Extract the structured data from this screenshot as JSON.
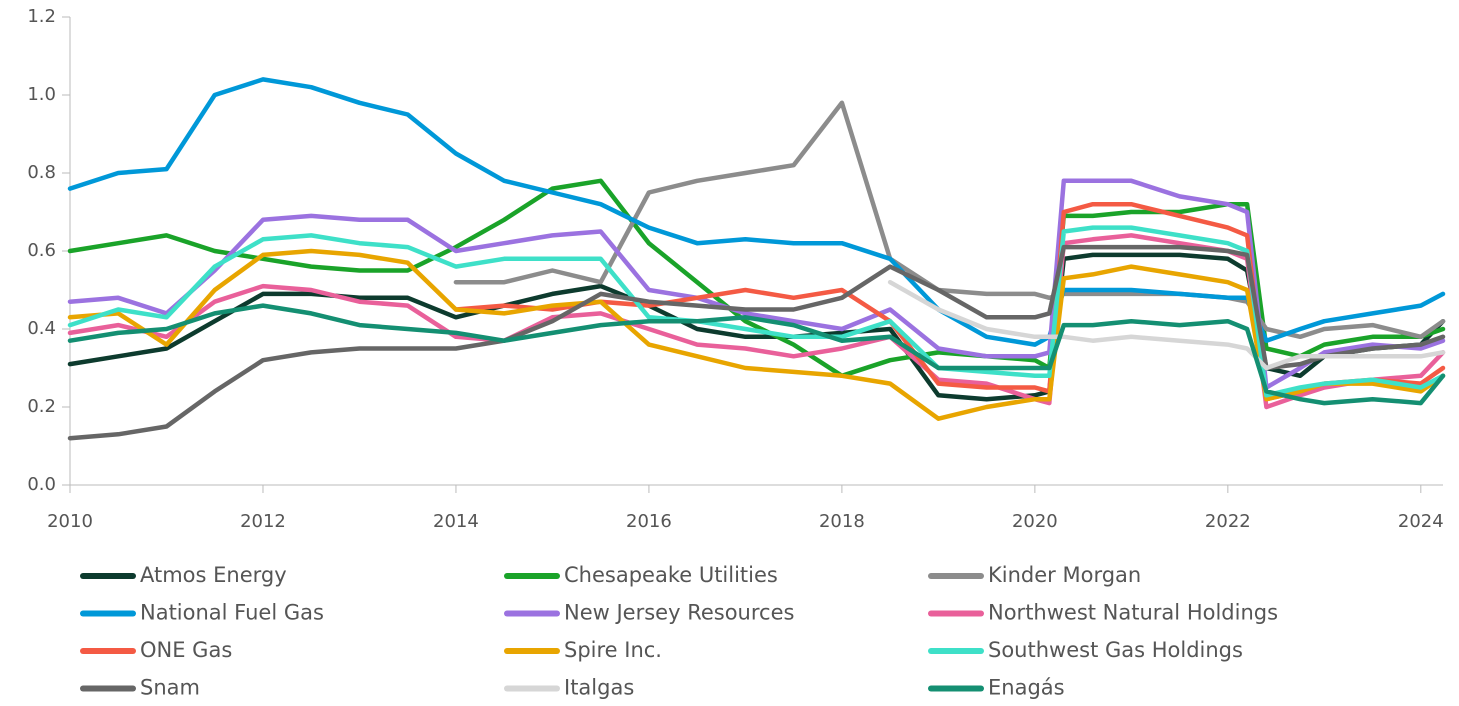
{
  "chart_data": {
    "type": "line",
    "x": [
      2010,
      2010.5,
      2011,
      2011.5,
      2012,
      2012.5,
      2013,
      2013.5,
      2014,
      2014.5,
      2015,
      2015.5,
      2016,
      2016.5,
      2017,
      2017.5,
      2018,
      2018.5,
      2019,
      2019.5,
      2020,
      2020.15,
      2020.3,
      2020.6,
      2021,
      2021.5,
      2022,
      2022.2,
      2022.4,
      2022.75,
      2023,
      2023.5,
      2024,
      2024.23
    ],
    "xlim": [
      2010,
      2024.23
    ],
    "xticks": [
      2010,
      2012,
      2014,
      2016,
      2018,
      2020,
      2022,
      2024
    ],
    "ylim": [
      0,
      1.2
    ],
    "yticks": [
      {
        "value": 0,
        "label": "0.0"
      },
      0.2,
      0.4,
      0.6,
      0.8,
      {
        "value": 1,
        "label": "1.0"
      },
      1.2
    ],
    "series": [
      {
        "name": "Atmos Energy",
        "color": "#0d3b2e",
        "values": [
          0.31,
          0.33,
          0.35,
          0.42,
          0.49,
          0.49,
          0.48,
          0.48,
          0.43,
          0.46,
          0.49,
          0.51,
          0.46,
          0.4,
          0.38,
          0.38,
          0.39,
          0.4,
          0.23,
          0.22,
          0.23,
          0.24,
          0.58,
          0.59,
          0.59,
          0.59,
          0.58,
          0.55,
          0.3,
          0.28,
          0.33,
          0.35,
          0.36,
          0.42
        ]
      },
      {
        "name": "Chesapeake Utilities",
        "color": "#1aa329",
        "values": [
          0.6,
          0.62,
          0.64,
          0.6,
          0.58,
          0.56,
          0.55,
          0.55,
          0.61,
          0.68,
          0.76,
          0.78,
          0.62,
          0.52,
          0.42,
          0.36,
          0.28,
          0.32,
          0.34,
          0.33,
          0.32,
          0.3,
          0.69,
          0.69,
          0.7,
          0.7,
          0.72,
          0.72,
          0.35,
          0.33,
          0.36,
          0.38,
          0.38,
          0.4
        ]
      },
      {
        "name": "Kinder Morgan",
        "color": "#8c8c8c",
        "values": [
          null,
          null,
          null,
          null,
          null,
          null,
          null,
          null,
          0.52,
          0.52,
          0.55,
          0.52,
          0.75,
          0.78,
          0.8,
          0.82,
          0.98,
          0.58,
          0.5,
          0.49,
          0.49,
          0.48,
          0.49,
          0.49,
          0.49,
          0.49,
          0.48,
          0.47,
          0.4,
          0.38,
          0.4,
          0.41,
          0.38,
          0.42
        ]
      },
      {
        "name": "National Fuel Gas",
        "color": "#0098d8",
        "values": [
          0.76,
          0.8,
          0.81,
          1.0,
          1.04,
          1.02,
          0.98,
          0.95,
          0.85,
          0.78,
          0.75,
          0.72,
          0.66,
          0.62,
          0.63,
          0.62,
          0.62,
          0.58,
          0.45,
          0.38,
          0.36,
          0.38,
          0.5,
          0.5,
          0.5,
          0.49,
          0.48,
          0.48,
          0.37,
          0.4,
          0.42,
          0.44,
          0.46,
          0.49
        ]
      },
      {
        "name": "New Jersey Resources",
        "color": "#9b72e0",
        "values": [
          0.47,
          0.48,
          0.44,
          0.55,
          0.68,
          0.69,
          0.68,
          0.68,
          0.6,
          0.62,
          0.64,
          0.65,
          0.5,
          0.48,
          0.44,
          0.42,
          0.4,
          0.45,
          0.35,
          0.33,
          0.33,
          0.34,
          0.78,
          0.78,
          0.78,
          0.74,
          0.72,
          0.7,
          0.25,
          0.3,
          0.34,
          0.36,
          0.35,
          0.37
        ]
      },
      {
        "name": "Northwest Natural Holdings",
        "color": "#e9609a",
        "values": [
          0.39,
          0.41,
          0.38,
          0.47,
          0.51,
          0.5,
          0.47,
          0.46,
          0.38,
          0.37,
          0.43,
          0.44,
          0.4,
          0.36,
          0.35,
          0.33,
          0.35,
          0.38,
          0.27,
          0.26,
          0.22,
          0.21,
          0.62,
          0.63,
          0.64,
          0.62,
          0.6,
          0.58,
          0.2,
          0.23,
          0.25,
          0.27,
          0.28,
          0.34
        ]
      },
      {
        "name": "ONE Gas",
        "color": "#f45a44",
        "values": [
          null,
          null,
          null,
          null,
          null,
          null,
          null,
          null,
          0.45,
          0.46,
          0.45,
          0.47,
          0.46,
          0.48,
          0.5,
          0.48,
          0.5,
          0.42,
          0.26,
          0.25,
          0.25,
          0.24,
          0.7,
          0.72,
          0.72,
          0.69,
          0.66,
          0.64,
          0.22,
          0.24,
          0.26,
          0.27,
          0.26,
          0.3
        ]
      },
      {
        "name": "Spire Inc.",
        "color": "#e8a500",
        "values": [
          0.43,
          0.44,
          0.36,
          0.5,
          0.59,
          0.6,
          0.59,
          0.57,
          0.45,
          0.44,
          0.46,
          0.47,
          0.36,
          0.33,
          0.3,
          0.29,
          0.28,
          0.26,
          0.17,
          0.2,
          0.22,
          0.22,
          0.53,
          0.54,
          0.56,
          0.54,
          0.52,
          0.5,
          0.22,
          0.24,
          0.26,
          0.26,
          0.24,
          0.28
        ]
      },
      {
        "name": "Southwest Gas Holdings",
        "color": "#3ee0c8",
        "values": [
          0.41,
          0.45,
          0.43,
          0.56,
          0.63,
          0.64,
          0.62,
          0.61,
          0.56,
          0.58,
          0.58,
          0.58,
          0.43,
          0.42,
          0.4,
          0.38,
          0.38,
          0.42,
          0.3,
          0.29,
          0.28,
          0.28,
          0.65,
          0.66,
          0.66,
          0.64,
          0.62,
          0.6,
          0.23,
          0.25,
          0.26,
          0.27,
          0.25,
          0.28
        ]
      },
      {
        "name": "Snam",
        "color": "#666666",
        "values": [
          0.12,
          0.13,
          0.15,
          0.24,
          0.32,
          0.34,
          0.35,
          0.35,
          0.35,
          0.37,
          0.42,
          0.49,
          0.47,
          0.46,
          0.45,
          0.45,
          0.48,
          0.56,
          0.5,
          0.43,
          0.43,
          0.44,
          0.61,
          0.61,
          0.61,
          0.61,
          0.6,
          0.59,
          0.3,
          0.31,
          0.33,
          0.35,
          0.36,
          0.38
        ]
      },
      {
        "name": "Italgas",
        "color": "#d6d6d6",
        "values": [
          null,
          null,
          null,
          null,
          null,
          null,
          null,
          null,
          null,
          null,
          null,
          null,
          null,
          null,
          null,
          null,
          null,
          0.52,
          0.45,
          0.4,
          0.38,
          0.38,
          0.38,
          0.37,
          0.38,
          0.37,
          0.36,
          0.35,
          0.3,
          0.33,
          0.33,
          0.33,
          0.33,
          0.34
        ]
      },
      {
        "name": "Enagás",
        "color": "#148f72",
        "values": [
          0.37,
          0.39,
          0.4,
          0.44,
          0.46,
          0.44,
          0.41,
          0.4,
          0.39,
          0.37,
          0.39,
          0.41,
          0.42,
          0.42,
          0.43,
          0.41,
          0.37,
          0.38,
          0.3,
          0.3,
          0.3,
          0.3,
          0.41,
          0.41,
          0.42,
          0.41,
          0.42,
          0.4,
          0.24,
          0.22,
          0.21,
          0.22,
          0.21,
          0.28
        ]
      }
    ]
  }
}
